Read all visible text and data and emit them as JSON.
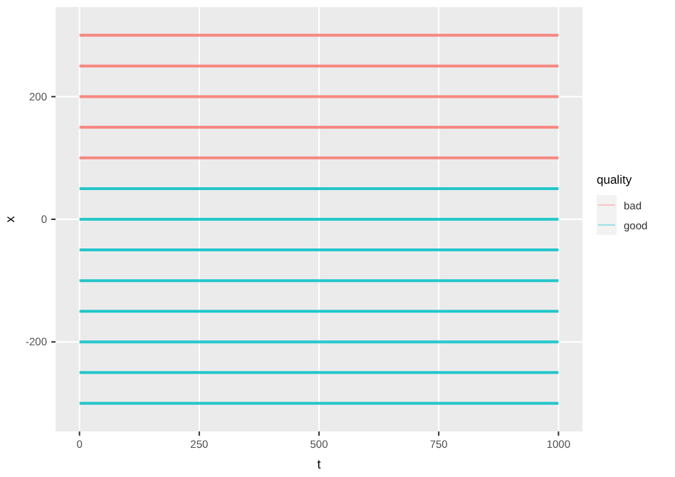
{
  "chart_data": {
    "type": "line",
    "xlabel": "t",
    "ylabel": "x",
    "legend_title": "quality",
    "xlim": [
      -50,
      1050
    ],
    "ylim": [
      -346,
      346
    ],
    "xticks": [
      0,
      250,
      500,
      750,
      1000
    ],
    "yticks": [
      -200,
      0,
      200
    ],
    "grid": true,
    "legend": "right",
    "marker": "none",
    "line_style": "solid",
    "x": [
      0,
      1000
    ],
    "series": [
      {
        "name": "bad",
        "color": "#f8766d",
        "values": [
          300,
          300
        ]
      },
      {
        "color": "#f8766d",
        "values": [
          250,
          250
        ]
      },
      {
        "color": "#f8766d",
        "values": [
          200,
          200
        ]
      },
      {
        "color": "#f8766d",
        "values": [
          150,
          150
        ]
      },
      {
        "color": "#f8766d",
        "values": [
          100,
          100
        ]
      },
      {
        "name": "good",
        "color": "#00bfc4",
        "values": [
          50,
          50
        ]
      },
      {
        "color": "#00bfc4",
        "values": [
          0,
          0
        ]
      },
      {
        "color": "#00bfc4",
        "values": [
          -50,
          -50
        ]
      },
      {
        "color": "#00bfc4",
        "values": [
          -100,
          -100
        ]
      },
      {
        "color": "#00bfc4",
        "values": [
          -150,
          -150
        ]
      },
      {
        "color": "#00bfc4",
        "values": [
          -200,
          -200
        ]
      },
      {
        "color": "#00bfc4",
        "values": [
          -250,
          -250
        ]
      },
      {
        "color": "#00bfc4",
        "values": [
          -300,
          -300
        ]
      }
    ]
  }
}
